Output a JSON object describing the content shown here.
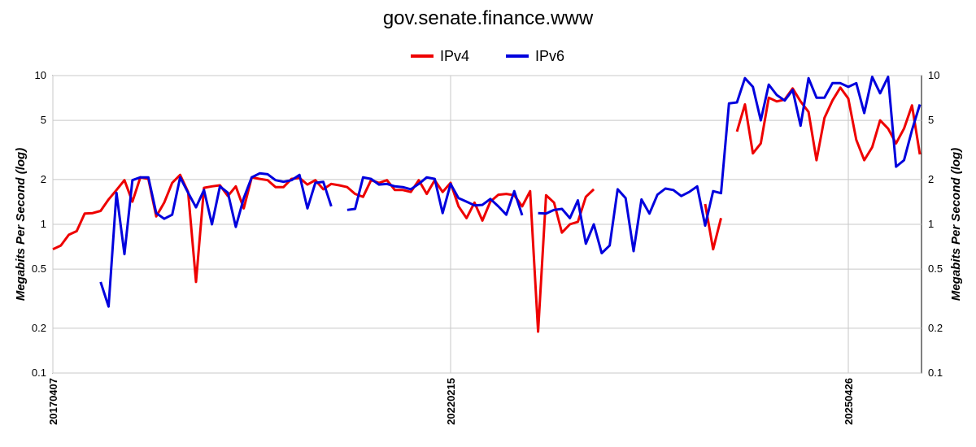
{
  "chart_data": {
    "type": "line",
    "title": "gov.senate.finance.www",
    "y_label": "Megabits Per Second (log)",
    "log_scale": true,
    "grid": true,
    "legend": "top",
    "categories": [
      "20170407",
      null,
      null,
      null,
      null,
      null,
      null,
      null,
      null,
      null,
      null,
      null,
      null,
      null,
      null,
      null,
      null,
      null,
      null,
      null,
      null,
      null,
      null,
      null,
      null,
      null,
      null,
      null,
      null,
      null,
      null,
      null,
      null,
      null,
      null,
      null,
      null,
      null,
      null,
      null,
      null,
      null,
      null,
      null,
      null,
      null,
      null,
      null,
      null,
      null,
      "20220215",
      null,
      null,
      null,
      null,
      null,
      null,
      null,
      null,
      null,
      null,
      null,
      null,
      null,
      null,
      null,
      null,
      null,
      null,
      null,
      null,
      null,
      null,
      null,
      null,
      null,
      null,
      null,
      null,
      null,
      null,
      null,
      null,
      null,
      null,
      null,
      null,
      null,
      null,
      null,
      null,
      null,
      null,
      null,
      null,
      null,
      null,
      null,
      null,
      null,
      "20250426",
      null,
      null,
      null,
      null,
      null,
      null,
      null,
      null,
      null
    ],
    "ylim": [
      0.1,
      10
    ],
    "yticks": [
      0.1,
      0.2,
      0.5,
      1,
      2,
      5,
      10
    ],
    "series": [
      {
        "name": "IPv4",
        "color": "#ee0000",
        "values": [
          0.68,
          0.72,
          0.85,
          0.9,
          1.18,
          1.19,
          1.23,
          1.47,
          1.7,
          1.98,
          1.42,
          2.07,
          2.02,
          1.13,
          1.4,
          1.9,
          2.15,
          1.65,
          0.41,
          1.76,
          1.8,
          1.83,
          1.55,
          1.8,
          1.28,
          2.07,
          2.02,
          1.98,
          1.78,
          1.78,
          2.02,
          2.05,
          1.85,
          1.98,
          1.72,
          1.87,
          1.83,
          1.78,
          1.6,
          1.53,
          1.98,
          1.9,
          1.98,
          1.7,
          1.7,
          1.65,
          1.98,
          1.6,
          1.98,
          1.65,
          1.9,
          1.32,
          1.1,
          1.4,
          1.06,
          1.42,
          1.58,
          1.6,
          1.57,
          1.32,
          1.67,
          0.19,
          1.57,
          1.4,
          0.88,
          1.0,
          1.04,
          1.53,
          1.72,
          null,
          null,
          null,
          null,
          null,
          null,
          null,
          null,
          null,
          null,
          null,
          null,
          null,
          1.37,
          0.68,
          1.1,
          null,
          4.2,
          6.4,
          3.0,
          3.5,
          7.1,
          6.7,
          6.9,
          8.2,
          6.7,
          5.7,
          2.7,
          5.2,
          6.8,
          8.3,
          7.0,
          3.7,
          2.7,
          3.3,
          5.0,
          4.4,
          3.5,
          4.4,
          6.3,
          2.95
        ]
      },
      {
        "name": "IPv6",
        "color": "#0000dd",
        "values": [
          null,
          null,
          null,
          null,
          null,
          null,
          0.41,
          0.28,
          1.63,
          0.63,
          1.98,
          2.07,
          2.07,
          1.19,
          1.09,
          1.16,
          2.07,
          1.63,
          1.3,
          1.7,
          1.0,
          1.8,
          1.63,
          0.96,
          1.5,
          2.07,
          2.2,
          2.17,
          1.98,
          1.93,
          1.98,
          2.15,
          1.28,
          1.9,
          1.93,
          1.32,
          null,
          1.25,
          1.27,
          2.07,
          2.02,
          1.85,
          1.87,
          1.8,
          1.78,
          1.72,
          1.87,
          2.07,
          2.02,
          1.19,
          1.87,
          1.5,
          1.42,
          1.34,
          1.35,
          1.48,
          1.32,
          1.16,
          1.67,
          1.15,
          null,
          1.19,
          1.18,
          1.25,
          1.27,
          1.1,
          1.45,
          0.74,
          1.0,
          0.64,
          0.72,
          1.72,
          1.5,
          0.66,
          1.47,
          1.18,
          1.58,
          1.74,
          1.7,
          1.55,
          1.65,
          1.8,
          0.98,
          1.67,
          1.62,
          6.5,
          6.6,
          9.6,
          8.4,
          5.0,
          8.7,
          7.4,
          6.8,
          8.0,
          4.6,
          9.6,
          7.1,
          7.1,
          8.9,
          8.9,
          8.4,
          8.9,
          5.6,
          9.8,
          7.6,
          9.8,
          2.44,
          2.7,
          4.3,
          6.4
        ]
      }
    ]
  }
}
